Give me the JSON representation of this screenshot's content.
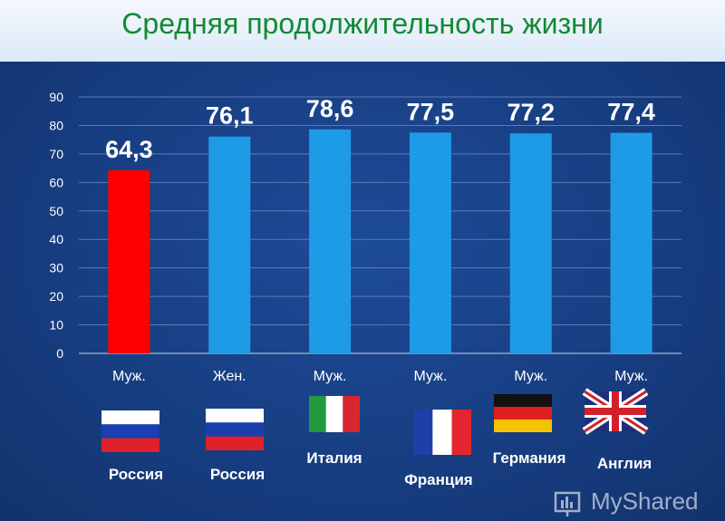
{
  "chart_data": {
    "type": "bar",
    "title": "Средняя продолжительность жизни",
    "categories": [
      "Муж.",
      "Жен.",
      "Муж.",
      "Муж.",
      "Муж.",
      "Муж."
    ],
    "values": [
      64.3,
      76.1,
      78.6,
      77.5,
      77.2,
      77.4
    ],
    "value_labels": [
      "64,3",
      "76,1",
      "78,6",
      "77,5",
      "77,2",
      "77,4"
    ],
    "countries": [
      "Россия",
      "Россия",
      "Италия",
      "Франция",
      "Германия",
      "Англия"
    ],
    "flags": [
      "russia-flag",
      "russia-flag",
      "italy-flag",
      "france-flag",
      "germany-flag",
      "uk-flag"
    ],
    "bar_colors": [
      "#ff0000",
      "#1e9be6",
      "#1e9be6",
      "#1e9be6",
      "#1e9be6",
      "#1e9be6"
    ],
    "ylim": [
      0,
      90
    ],
    "yticks": [
      0,
      10,
      20,
      30,
      40,
      50,
      60,
      70,
      80,
      90
    ],
    "grid": true,
    "xlabel": "",
    "ylabel": ""
  },
  "watermark": "MyShared"
}
